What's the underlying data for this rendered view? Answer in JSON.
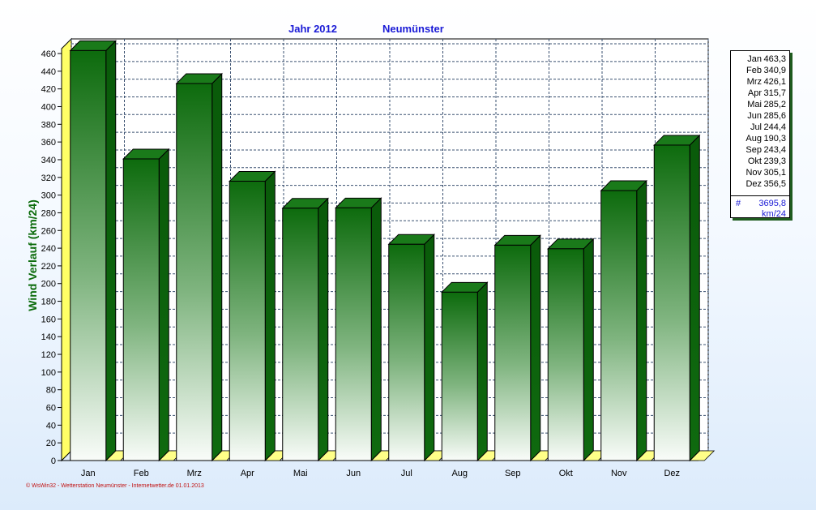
{
  "title": {
    "year": "Jahr  2012",
    "location": "Neumünster"
  },
  "chart_data": {
    "type": "bar",
    "title": "Jahr  2012   Neumünster",
    "ylabel": "Wind Verlauf  (km/24)",
    "xlabel": "",
    "categories": [
      "Jan",
      "Feb",
      "Mrz",
      "Apr",
      "Mai",
      "Jun",
      "Jul",
      "Aug",
      "Sep",
      "Okt",
      "Nov",
      "Dez"
    ],
    "values": [
      463.3,
      340.9,
      426.1,
      315.7,
      285.2,
      285.6,
      244.4,
      190.3,
      243.4,
      239.3,
      305.1,
      356.5
    ],
    "ylim": [
      0,
      460
    ],
    "yticks": [
      0,
      20,
      40,
      60,
      80,
      100,
      120,
      140,
      160,
      180,
      200,
      220,
      240,
      260,
      280,
      300,
      320,
      340,
      360,
      380,
      400,
      420,
      440,
      460
    ],
    "grid": true,
    "legend_position": "right",
    "colors": {
      "bar_top": "#0d6b0d",
      "bar_bottom": "#f7fbf7",
      "bar_side": "#0b5a0b",
      "floor": "#ffff88",
      "grid": "#3a5070"
    }
  },
  "legend": {
    "rows": [
      {
        "month": "Jan",
        "value": "463,3"
      },
      {
        "month": "Feb",
        "value": "340,9"
      },
      {
        "month": "Mrz",
        "value": "426,1"
      },
      {
        "month": "Apr",
        "value": "315,7"
      },
      {
        "month": "Mai",
        "value": "285,2"
      },
      {
        "month": "Jun",
        "value": "285,6"
      },
      {
        "month": "Jul",
        "value": "244,4"
      },
      {
        "month": "Aug",
        "value": "190,3"
      },
      {
        "month": "Sep",
        "value": "243,4"
      },
      {
        "month": "Okt",
        "value": "239,3"
      },
      {
        "month": "Nov",
        "value": "305,1"
      },
      {
        "month": "Dez",
        "value": "356,5"
      }
    ],
    "total_symbol": "#",
    "total_value": "3695,8",
    "unit": "km/24"
  },
  "footer": "© WsWin32 - Wetterstation Neumünster - Internetwetter.de  01.01.2013"
}
